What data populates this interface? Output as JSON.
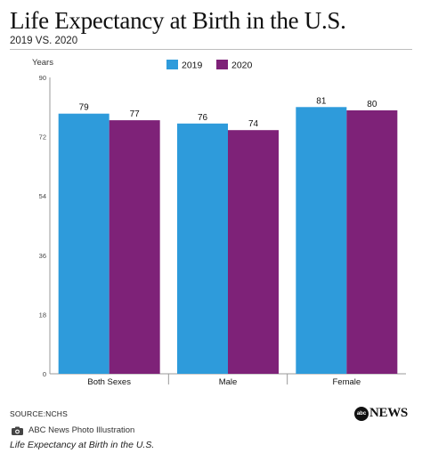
{
  "header": {
    "title": "Life Expectancy at Birth in the U.S.",
    "subtitle": "2019 VS. 2020"
  },
  "chart_data": {
    "type": "bar",
    "ylabel": "Years",
    "ylim": [
      0,
      90
    ],
    "yticks": [
      0,
      18,
      36,
      54,
      72,
      90
    ],
    "categories": [
      "Both Sexes",
      "Male",
      "Female"
    ],
    "series": [
      {
        "name": "2019",
        "values": [
          79,
          76,
          81
        ],
        "labels": [
          "79",
          "76",
          "81"
        ],
        "color": "#2E9BDB"
      },
      {
        "name": "2020",
        "values": [
          77,
          74,
          80
        ],
        "labels": [
          "77",
          "74",
          "80"
        ],
        "color": "#7E2278"
      }
    ],
    "legend": "top-center",
    "grid": false
  },
  "footer": {
    "source": "SOURCE:NCHS",
    "logo_text": "NEWS",
    "logo_mark": "abc",
    "credit_icon": "camera-icon",
    "credit": "ABC News Photo Illustration",
    "caption": "Life Expectancy at Birth in the U.S."
  }
}
